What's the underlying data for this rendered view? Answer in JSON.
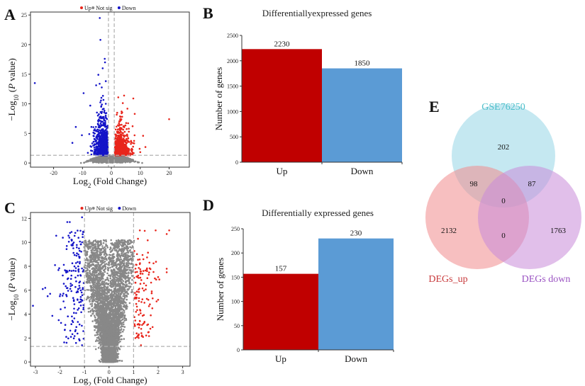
{
  "panel_letters": {
    "a": "A",
    "b": "B",
    "c": "C",
    "d": "D",
    "e": "E"
  },
  "chart_data": [
    {
      "id": "A",
      "type": "scatter",
      "xlabel": "Log2 (Fold Change)",
      "ylabel": "-Log10 (P value)",
      "xticks": [
        -20,
        -10,
        0,
        10,
        20
      ],
      "yticks": [
        0,
        5,
        10,
        15,
        20,
        25
      ],
      "xlim": [
        -28,
        27
      ],
      "ylim": [
        -0.7,
        25.5
      ],
      "legend": {
        "placement": "top",
        "entries": [
          {
            "label": "Up",
            "color": "#e8261c"
          },
          {
            "label": "Not sig",
            "color": "#888888"
          },
          {
            "label": "Down",
            "color": "#1414c8"
          }
        ]
      },
      "thresholds": {
        "log2fc": 1,
        "log10p": 1.3
      },
      "notable_points": {
        "up": [
          [
            20,
            7.4
          ],
          [
            7.6,
            10.9
          ],
          [
            4.4,
            11.4
          ],
          [
            2.4,
            11.1
          ],
          [
            11,
            4.6
          ],
          [
            11.8,
            2.7
          ],
          [
            8.1,
            8.3
          ],
          [
            9.8,
            2.4
          ]
        ],
        "down": [
          [
            -26.5,
            13.5
          ],
          [
            -4,
            24.5
          ],
          [
            -3.8,
            20.8
          ],
          [
            -2.3,
            17.6
          ],
          [
            -2.2,
            17
          ],
          [
            -3,
            16
          ],
          [
            -9.6,
            11.8
          ],
          [
            -12.3,
            6.1
          ],
          [
            -13.5,
            3.4
          ],
          [
            -10.2,
            4.7
          ],
          [
            -7.3,
            9.7
          ],
          [
            -4.5,
            14.9
          ]
        ]
      }
    },
    {
      "id": "B",
      "type": "bar",
      "title": "Differentiallyexpressed genes",
      "ylabel": "Number of genes",
      "categories": [
        "Up",
        "Down"
      ],
      "values": [
        2230,
        1850
      ],
      "colors": [
        "#c00000",
        "#5b9bd5"
      ],
      "yticks": [
        0,
        500,
        1000,
        1500,
        2000,
        2500
      ],
      "ylim": [
        0,
        2500
      ]
    },
    {
      "id": "C",
      "type": "scatter",
      "xlabel": "Log2 (Fold Change)",
      "ylabel": "-Log10 (P value)",
      "xticks": [
        -3,
        -2,
        -1,
        0,
        1,
        2,
        3
      ],
      "yticks": [
        0,
        2,
        4,
        6,
        8,
        10,
        12
      ],
      "xlim": [
        -3.2,
        3.3
      ],
      "ylim": [
        -0.35,
        12.5
      ],
      "legend": {
        "placement": "top",
        "entries": [
          {
            "label": "Up",
            "color": "#e8261c"
          },
          {
            "label": "Not sig",
            "color": "#888888"
          },
          {
            "label": "Down",
            "color": "#1414c8"
          }
        ]
      },
      "thresholds": {
        "log2fc": 1,
        "log10p": 1.3
      },
      "notable_points": {
        "up": [
          [
            2.45,
            11
          ],
          [
            2.35,
            10.7
          ],
          [
            2.35,
            7.8
          ],
          [
            2.35,
            7.5
          ],
          [
            2.0,
            7.1
          ],
          [
            2.05,
            6.9
          ],
          [
            2.0,
            5.2
          ],
          [
            1.9,
            11
          ],
          [
            1.3,
            1.4
          ],
          [
            1.6,
            5.2
          ],
          [
            1.4,
            3.2
          ]
        ],
        "down": [
          [
            -3.1,
            4.7
          ],
          [
            -2.6,
            6.2
          ],
          [
            -2.7,
            6.1
          ],
          [
            -2.4,
            5.7
          ],
          [
            -2.5,
            5.5
          ],
          [
            -1.1,
            12.1
          ],
          [
            -1.6,
            11.7
          ],
          [
            -1.7,
            11.7
          ],
          [
            -2.2,
            8.1
          ],
          [
            -2.05,
            3.5
          ],
          [
            -1.8,
            2.7
          ],
          [
            -1.1,
            1.4
          ]
        ]
      }
    },
    {
      "id": "D",
      "type": "bar",
      "title": "Differentially expressed genes",
      "ylabel": "Number of genes",
      "categories": [
        "Up",
        "Down"
      ],
      "values": [
        157,
        230
      ],
      "colors": [
        "#c00000",
        "#5b9bd5"
      ],
      "yticks": [
        0,
        50,
        100,
        150,
        200,
        250
      ],
      "ylim": [
        0,
        250
      ]
    },
    {
      "id": "E",
      "type": "venn",
      "sets": [
        {
          "name": "GSE76250",
          "color": "#4dbfca",
          "fill": "#9ed8e8"
        },
        {
          "name": "DEGs_up",
          "color": "#c83a3c",
          "fill": "#f08a8c"
        },
        {
          "name": "DEGs down",
          "color": "#9a52c2",
          "fill": "#c98ad9"
        }
      ],
      "regions": {
        "GSE76250_only": "202",
        "GSE76250_DEGs_up": "98",
        "GSE76250_DEGs_down": "87",
        "all_three": "0",
        "DEGs_up_only": "2132",
        "DEGs_up_DEGs_down": "0",
        "DEGs_down_only": "1763"
      }
    }
  ]
}
